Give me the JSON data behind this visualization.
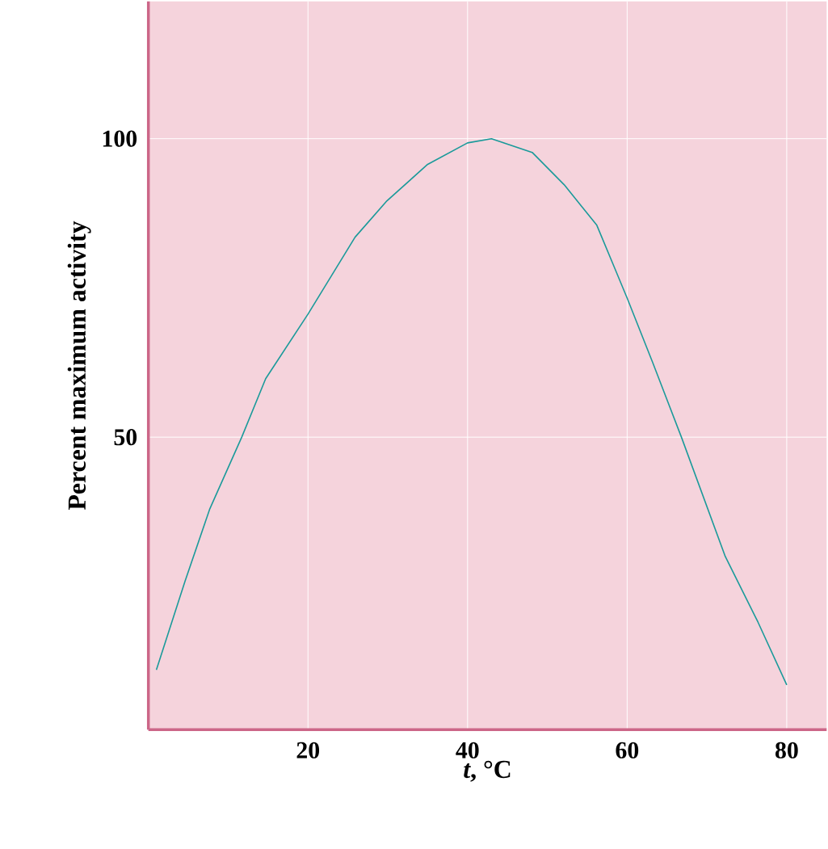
{
  "chart_data": {
    "type": "line",
    "xlabel": "*t*, °C",
    "ylabel": "Percent maximum activity",
    "xlim": [
      0,
      85
    ],
    "ylim": [
      1,
      123
    ],
    "xticks": [
      20,
      40,
      60,
      80
    ],
    "yticks": [
      50,
      100
    ],
    "grid": true,
    "series": [
      {
        "color": "#1a9a9a",
        "x": [
          1,
          4.6,
          7.7,
          11.7,
          14.7,
          20,
          25.9,
          29.9,
          35,
          40,
          43,
          48.1,
          52.1,
          56.2,
          60,
          63.2,
          66.8,
          72.3,
          76.4,
          80
        ],
        "values": [
          11,
          25.9,
          38,
          50,
          59.8,
          70.6,
          83.5,
          89.6,
          95.7,
          99.3,
          100,
          97.7,
          92.3,
          85.5,
          73.3,
          62.5,
          50,
          30,
          19,
          8.5
        ]
      }
    ]
  }
}
